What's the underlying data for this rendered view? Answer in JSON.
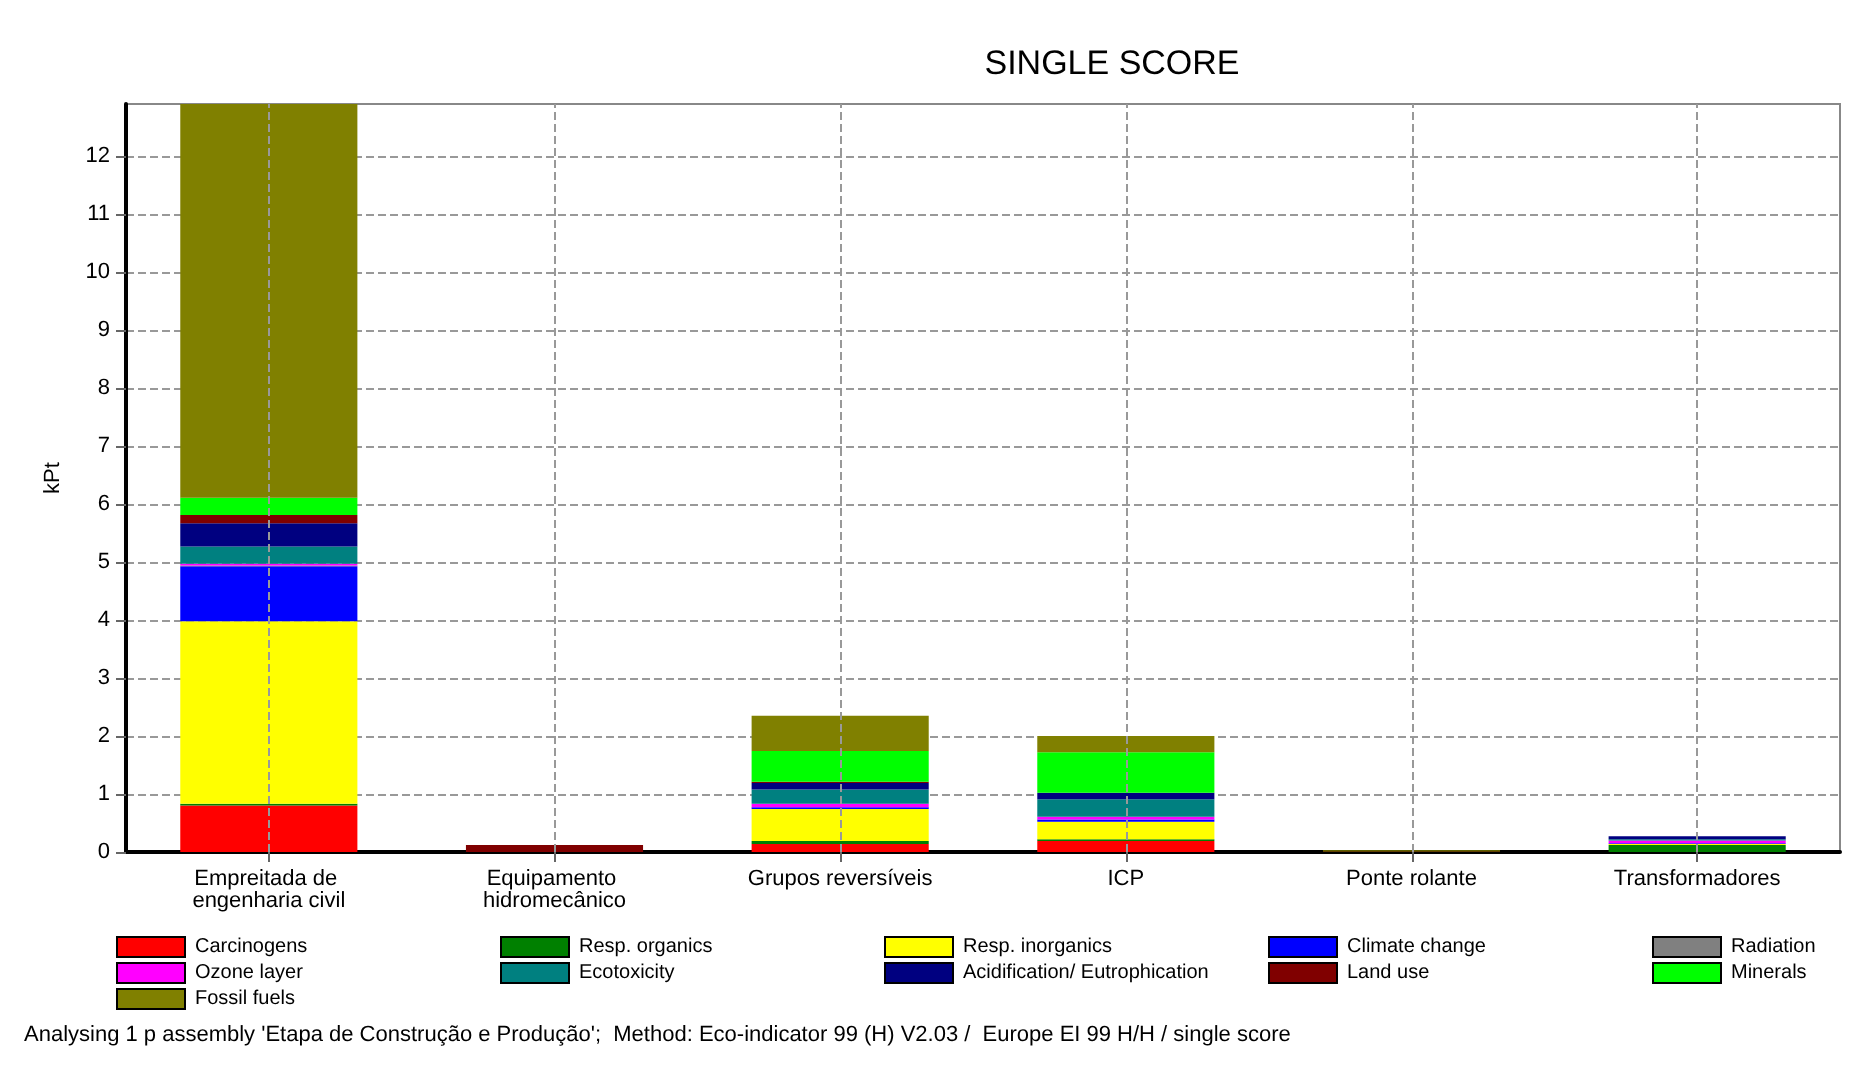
{
  "chart_data": {
    "type": "bar",
    "title": "SINGLE SCORE",
    "ylabel": "kPt",
    "stacked": true,
    "grid": true,
    "legend": "bottom",
    "categories": [
      "Empreitada de engenharia civil",
      "Equipamento hidromecânico",
      "Grupos reversíveis",
      "ICP",
      "Ponte rolante",
      "Transformadores"
    ],
    "ylim": [
      0,
      12.9
    ],
    "yticks": [
      0,
      1,
      2,
      3,
      4,
      5,
      6,
      7,
      8,
      9,
      10,
      11,
      12
    ],
    "series": [
      {
        "name": "Carcinogens",
        "color": "#ff0000",
        "values": [
          0.8,
          0,
          0.14,
          0.19,
          0,
          null
        ]
      },
      {
        "name": "Resp. organics",
        "color": "#008000",
        "values": [
          0.03,
          0,
          0.05,
          0.03,
          0,
          0.12
        ]
      },
      {
        "name": "Resp. inorganics",
        "color": "#ffff00",
        "values": [
          3.15,
          0,
          0.55,
          0.3,
          0,
          0.02
        ]
      },
      {
        "name": "Climate change",
        "color": "#0000ff",
        "values": [
          0.95,
          0,
          0.03,
          0.04,
          0,
          0.01
        ]
      },
      {
        "name": "Radiation",
        "color": "#808080",
        "values": [
          0.01,
          0,
          0,
          0,
          0,
          0
        ]
      },
      {
        "name": "Ozone layer",
        "color": "#ff00ff",
        "values": [
          0.03,
          0,
          0.06,
          0.05,
          0,
          0.05
        ]
      },
      {
        "name": "Ecotoxicity",
        "color": "#008080",
        "values": [
          0.3,
          0,
          0.25,
          0.3,
          0,
          0.02
        ]
      },
      {
        "name": "Acidification/ Eutrophication",
        "color": "#000080",
        "values": [
          0.4,
          0,
          0.11,
          0.11,
          0,
          0.05
        ]
      },
      {
        "name": "Land use",
        "color": "#800000",
        "values": [
          0.14,
          0.12,
          0.02,
          0,
          0.01,
          0
        ]
      },
      {
        "name": "Minerals",
        "color": "#00ff00",
        "values": [
          0.3,
          0,
          0.53,
          0.7,
          0,
          0
        ]
      },
      {
        "name": "Fossil fuels",
        "color": "#808000",
        "values": [
          6.79,
          0,
          0.61,
          0.28,
          0.02,
          0
        ]
      }
    ],
    "annotations": [
      "Analysing 1 p assembly 'Etapa de Construção e Produção';  Method: Eco-indicator 99 (H) V2.03 /  Europe EI 99 H/H / single score"
    ]
  }
}
